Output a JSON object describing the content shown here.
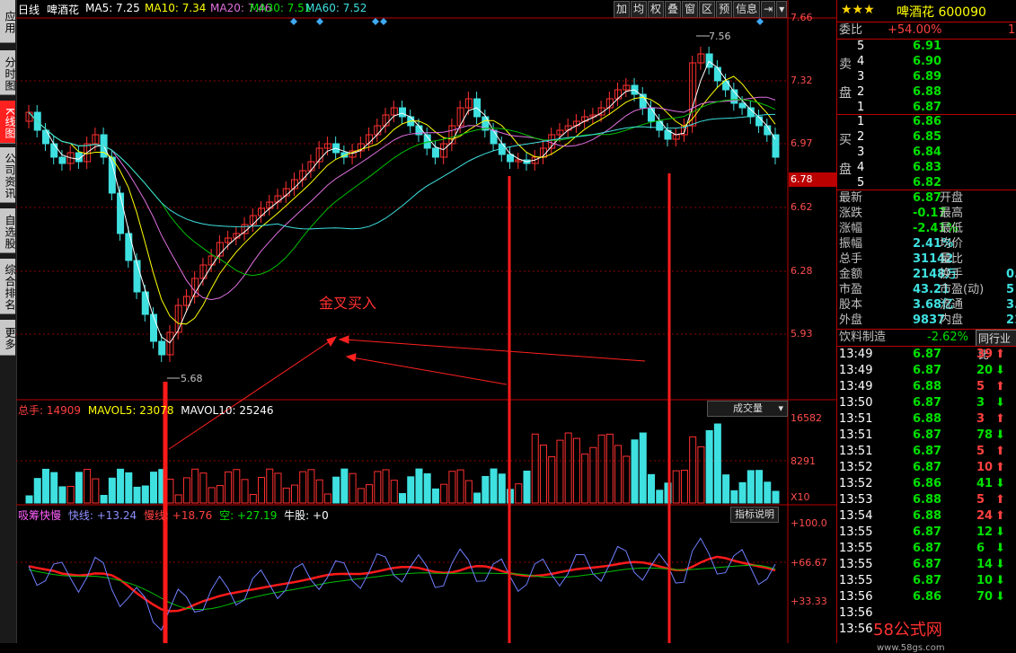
{
  "sidebar": {
    "tabs": [
      "应用",
      "分时图",
      "K线图",
      "公司资讯",
      "自选股",
      "综合排名",
      "更多"
    ]
  },
  "header": {
    "period": "日线",
    "stock_name": "啤酒花",
    "ma5": "MA5: 7.25",
    "ma10": "MA10: 7.34",
    "ma20": "MA20: 7.46",
    "ma30": "MA30: 7.51",
    "ma60": "MA60: 7.52",
    "tools": [
      "加",
      "均",
      "权",
      "叠",
      "窗",
      "区",
      "预",
      "信息"
    ]
  },
  "price_axis": {
    "ticks": [
      "7.66",
      "7.32",
      "6.97",
      "6.62",
      "6.28",
      "5.93"
    ],
    "current": "6.78",
    "high_label": "7.56",
    "low_label": "5.68"
  },
  "annotation": {
    "text": "金叉买入"
  },
  "volume": {
    "label": "总手: 14909",
    "mavol5": "MAVOL5: 23078",
    "mavol10": "MAVOL10: 25246",
    "dropdown": "成交量",
    "ticks": [
      "16582",
      "8291",
      "X10"
    ]
  },
  "indicator": {
    "name": "吸筹快慢",
    "fast": "快线: +13.24",
    "slow": "慢线: +18.76",
    "empty": "空: +27.19",
    "bull": "牛股: +0",
    "help": "指标说明",
    "ticks": [
      "+100.0",
      "+66.67",
      "+33.33"
    ]
  },
  "quote": {
    "stars": "★★★",
    "title": "啤酒花 600090",
    "weibi_label": "委比",
    "weibi_value": "+54.00%",
    "weibi_extra": "1",
    "sell_label": [
      "卖",
      "盘"
    ],
    "buy_label": [
      "买",
      "盘"
    ],
    "sell": [
      {
        "lvl": "5",
        "price": "6.91"
      },
      {
        "lvl": "4",
        "price": "6.90"
      },
      {
        "lvl": "3",
        "price": "6.89"
      },
      {
        "lvl": "2",
        "price": "6.88"
      },
      {
        "lvl": "1",
        "price": "6.87"
      }
    ],
    "buy": [
      {
        "lvl": "1",
        "price": "6.86"
      },
      {
        "lvl": "2",
        "price": "6.85"
      },
      {
        "lvl": "3",
        "price": "6.84"
      },
      {
        "lvl": "4",
        "price": "6.83"
      },
      {
        "lvl": "5",
        "price": "6.82"
      }
    ],
    "stats": [
      {
        "k1": "最新",
        "v1": "6.87",
        "k2": "开盘"
      },
      {
        "k1": "涨跌",
        "v1": "-0.17",
        "k2": "最高"
      },
      {
        "k1": "涨幅",
        "v1": "-2.41%",
        "k2": "最低"
      },
      {
        "k1": "振幅",
        "v1": "2.41%",
        "k2": "均价"
      },
      {
        "k1": "总手",
        "v1": "31142",
        "k2": "量比"
      },
      {
        "k1": "金额",
        "v1": "2148万",
        "k2": "换手",
        "v2": "0."
      },
      {
        "k1": "市盈",
        "v1": "43.21",
        "k2": "市盈(动)",
        "v2": "5"
      },
      {
        "k1": "股本",
        "v1": "3.68亿",
        "k2": "流通",
        "v2": "3.6"
      },
      {
        "k1": "外盘",
        "v1": "9837",
        "k2": "内盘",
        "v2": "21"
      }
    ],
    "sector": "饮料制造",
    "sector_change": "-2.62%",
    "industry_btn": "同行业比",
    "ticks": [
      {
        "time": "13:49",
        "price": "6.87",
        "vol": "39",
        "dir": "up"
      },
      {
        "time": "13:49",
        "price": "6.87",
        "vol": "20",
        "dir": "down"
      },
      {
        "time": "13:49",
        "price": "6.88",
        "vol": "5",
        "dir": "up"
      },
      {
        "time": "13:50",
        "price": "6.87",
        "vol": "3",
        "dir": "down"
      },
      {
        "time": "13:51",
        "price": "6.88",
        "vol": "3",
        "dir": "up"
      },
      {
        "time": "13:51",
        "price": "6.87",
        "vol": "78",
        "dir": "down"
      },
      {
        "time": "13:51",
        "price": "6.87",
        "vol": "5",
        "dir": "up"
      },
      {
        "time": "13:52",
        "price": "6.87",
        "vol": "10",
        "dir": "up"
      },
      {
        "time": "13:52",
        "price": "6.86",
        "vol": "41",
        "dir": "down"
      },
      {
        "time": "13:53",
        "price": "6.88",
        "vol": "5",
        "dir": "up"
      },
      {
        "time": "13:54",
        "price": "6.88",
        "vol": "24",
        "dir": "up"
      },
      {
        "time": "13:55",
        "price": "6.87",
        "vol": "12",
        "dir": "down"
      },
      {
        "time": "13:55",
        "price": "6.87",
        "vol": "6",
        "dir": "down"
      },
      {
        "time": "13:55",
        "price": "6.87",
        "vol": "14",
        "dir": "down"
      },
      {
        "time": "13:55",
        "price": "6.87",
        "vol": "10",
        "dir": "down"
      },
      {
        "time": "13:56",
        "price": "6.86",
        "vol": "70",
        "dir": "down"
      },
      {
        "time": "13:56",
        "price": "",
        "vol": "",
        "dir": ""
      },
      {
        "time": "13:56",
        "price": "",
        "vol": "",
        "dir": ""
      }
    ],
    "watermark": "58公式网",
    "watermark_url": "www.58gs.com"
  }
}
